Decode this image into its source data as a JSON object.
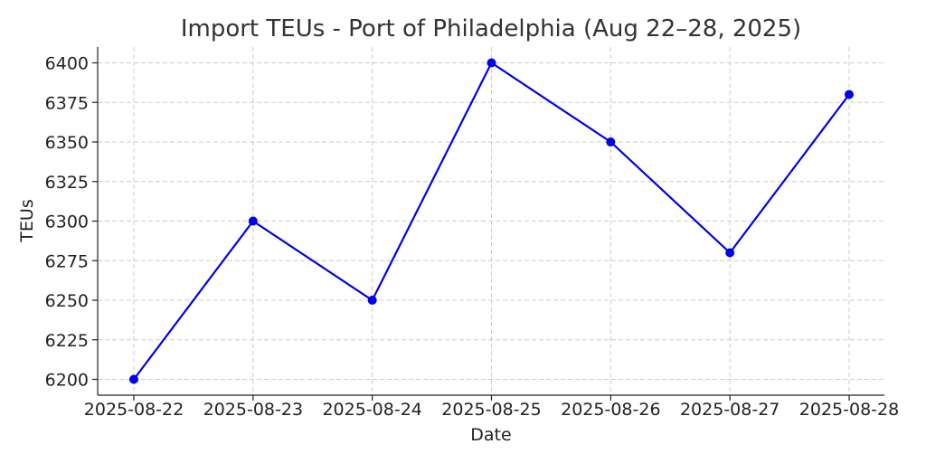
{
  "chart_data": {
    "type": "line",
    "title": "Import TEUs - Port of Philadelphia (Aug 22–28, 2025)",
    "xlabel": "Date",
    "ylabel": "TEUs",
    "categories": [
      "2025-08-22",
      "2025-08-23",
      "2025-08-24",
      "2025-08-25",
      "2025-08-26",
      "2025-08-27",
      "2025-08-28"
    ],
    "series": [
      {
        "values": [
          6200,
          6300,
          6250,
          6400,
          6350,
          6280,
          6380
        ],
        "color": "#0000ee"
      }
    ],
    "ylim": [
      6190,
      6410
    ],
    "yticks": [
      6200,
      6225,
      6250,
      6275,
      6300,
      6325,
      6350,
      6375,
      6400
    ],
    "grid": true,
    "legend": "none"
  }
}
